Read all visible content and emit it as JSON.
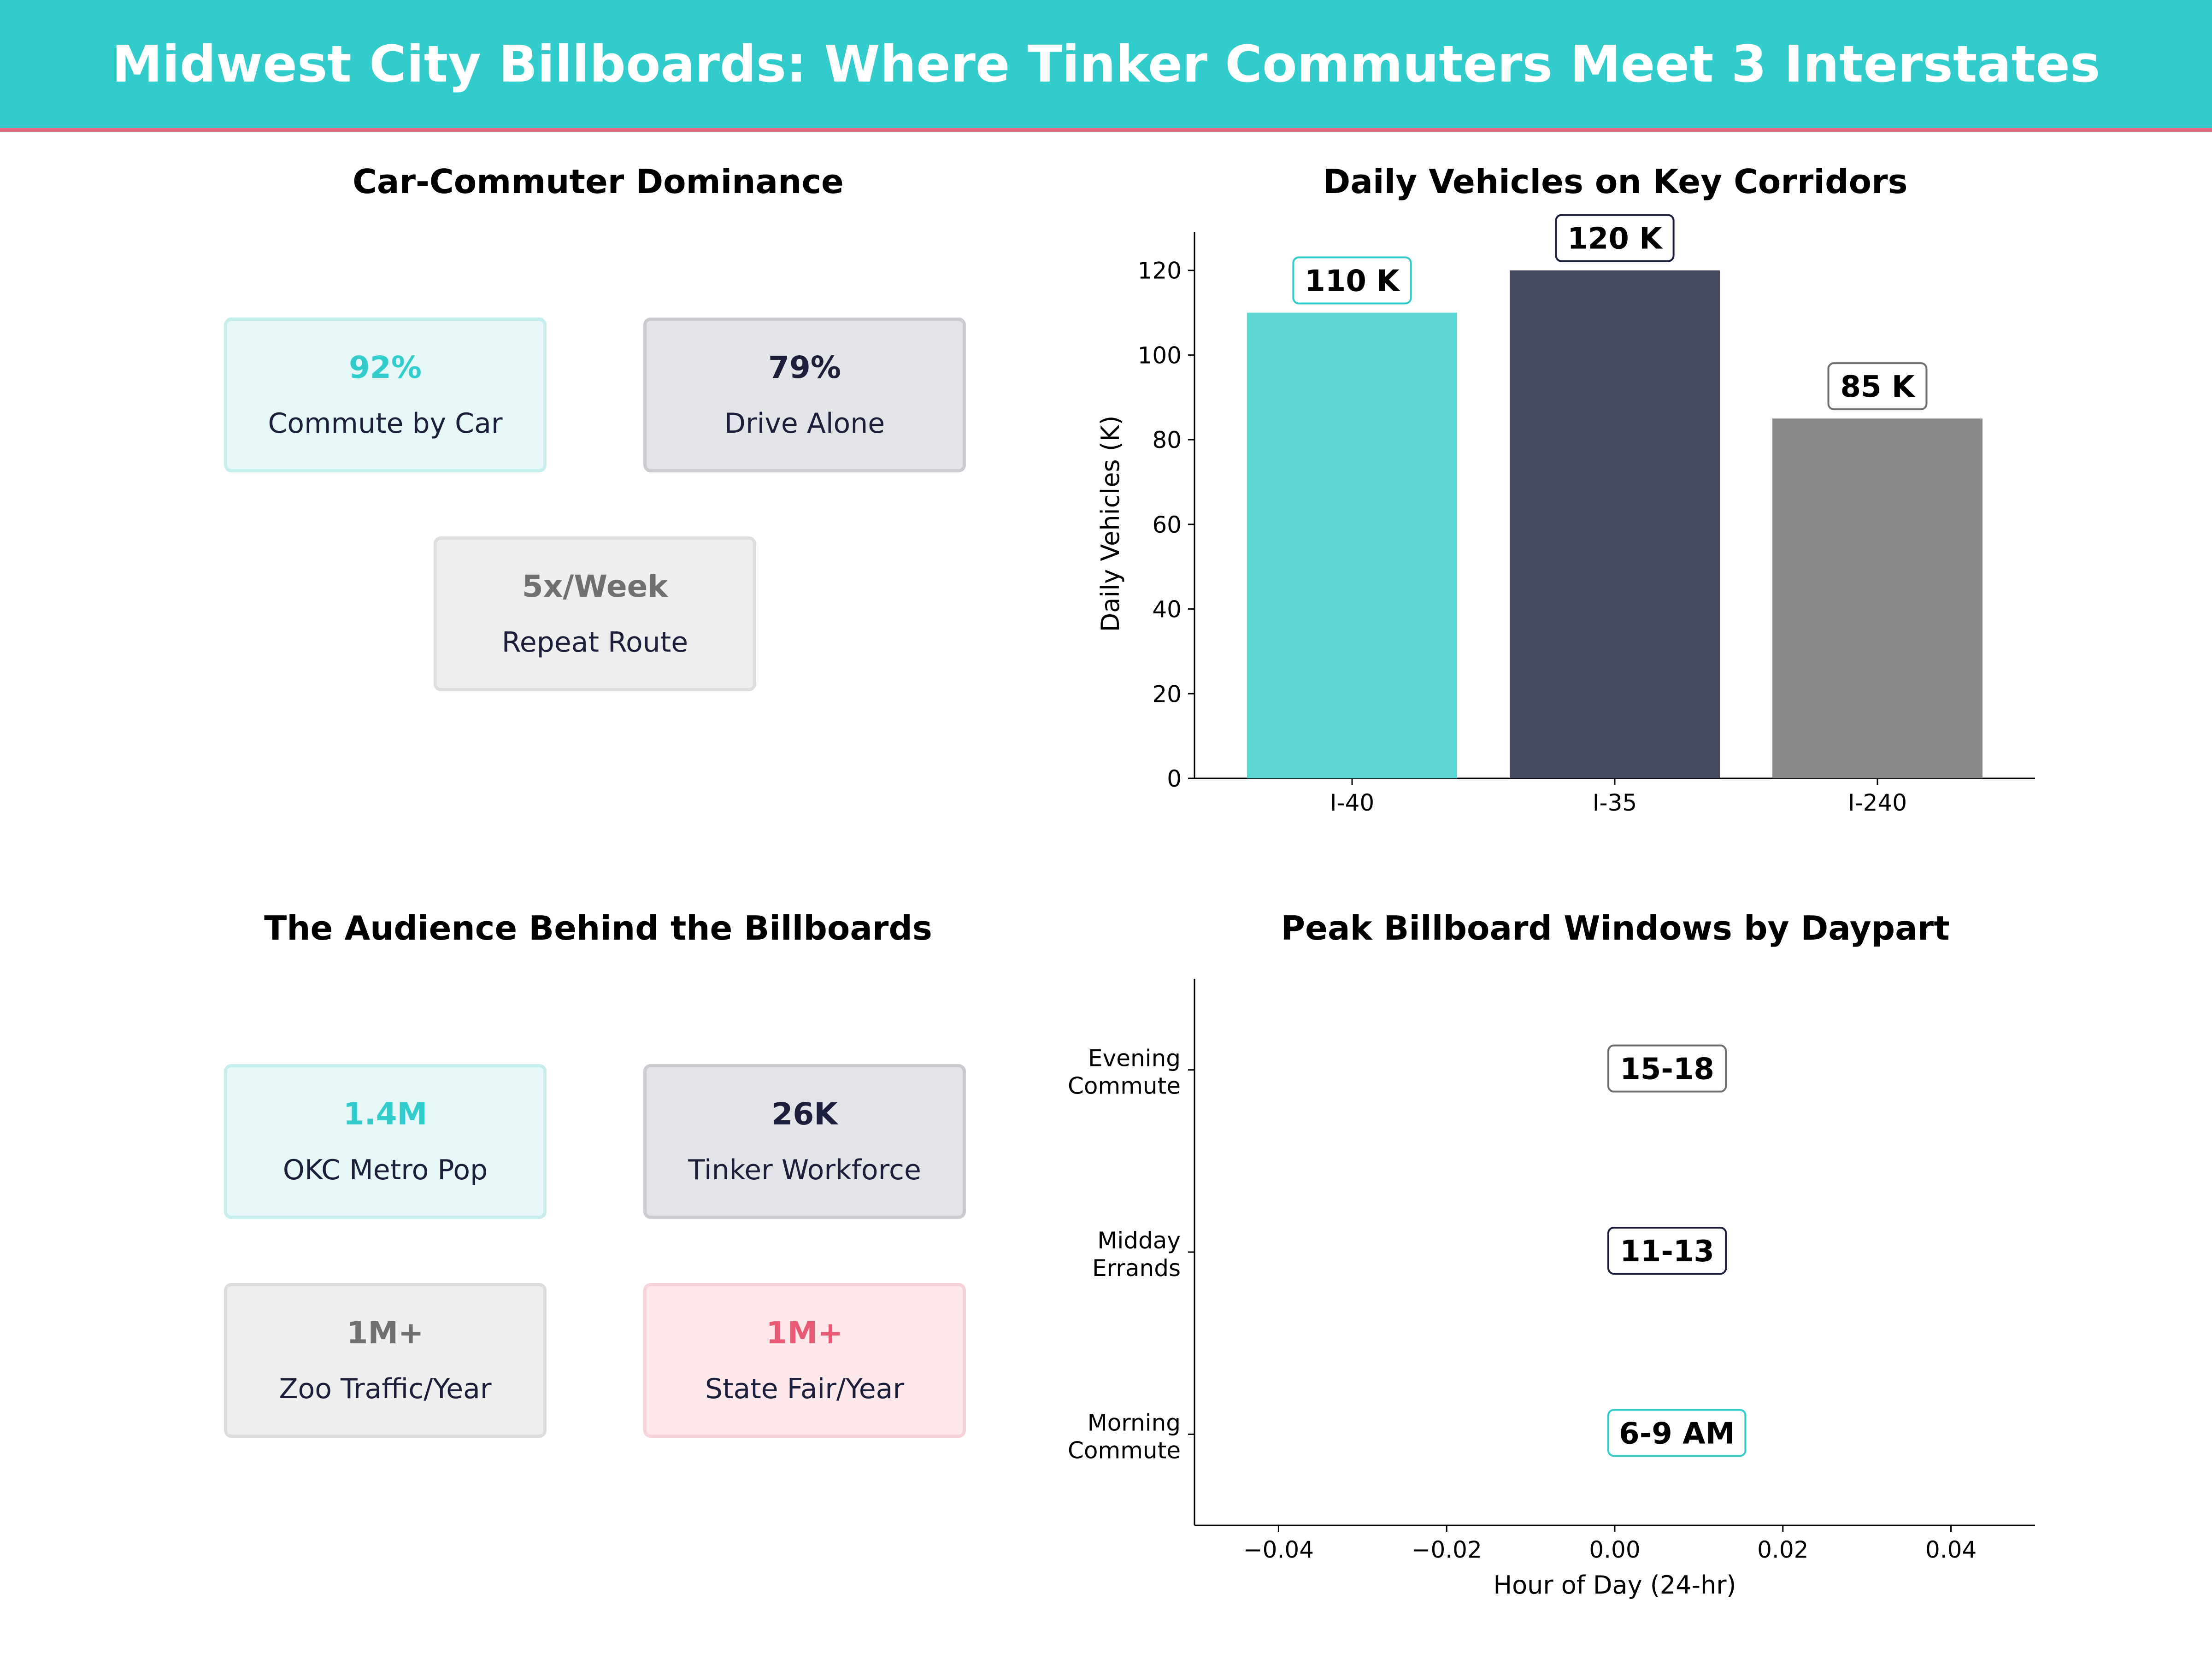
{
  "title": "Midwest City Billboards: Where Tinker Commuters Meet 3 Interstates",
  "colors": {
    "teal": "#33CCCC",
    "navy": "#1B1F3B",
    "gray": "#707070",
    "pink": "#E85A73",
    "teal_bar": "#5DD8D5",
    "navy_bar": "#454A5E",
    "gray_bar": "#8A8A8A"
  },
  "commuter_panel": {
    "title": "Car-Commuter Dominance",
    "cards": [
      {
        "value": "92%",
        "label": "Commute by Car",
        "color": "teal"
      },
      {
        "value": "79%",
        "label": "Drive Alone",
        "color": "navy"
      },
      {
        "value": "5x/Week",
        "label": "Repeat Route",
        "color": "gray"
      }
    ]
  },
  "audience_panel": {
    "title": "The Audience Behind the Billboards",
    "cards": [
      {
        "value": "1.4M",
        "label": "OKC Metro Pop",
        "color": "teal"
      },
      {
        "value": "26K",
        "label": "Tinker Workforce",
        "color": "navy"
      },
      {
        "value": "1M+",
        "label": "Zoo Traffic/Year",
        "color": "gray"
      },
      {
        "value": "1M+",
        "label": "State Fair/Year",
        "color": "pink"
      }
    ]
  },
  "chart_data": [
    {
      "type": "bar",
      "title": "Daily Vehicles on Key Corridors",
      "categories": [
        "I-40",
        "I-35",
        "I-240"
      ],
      "values": [
        110,
        120,
        85
      ],
      "data_labels": [
        "110 K",
        "120 K",
        "85 K"
      ],
      "bar_colors": [
        "teal_bar",
        "navy_bar",
        "gray_bar"
      ],
      "label_border_colors": [
        "teal",
        "navy",
        "gray"
      ],
      "ylabel": "Daily Vehicles (K)",
      "xlabel": "",
      "ylim": [
        0,
        129
      ],
      "yticks": [
        0,
        20,
        40,
        60,
        80,
        100,
        120
      ],
      "grid": false
    },
    {
      "type": "scatter",
      "title": "Peak Billboard Windows by Daypart",
      "xlabel": "Hour of Day (24-hr)",
      "xlim": [
        -0.05,
        0.05
      ],
      "xticks": [
        -0.04,
        -0.02,
        0.0,
        0.02,
        0.04
      ],
      "xtick_labels": [
        "−0.04",
        "−0.02",
        "0.00",
        "0.02",
        "0.04"
      ],
      "categories": [
        {
          "line1": "Morning",
          "line2": "Commute"
        },
        {
          "line1": "Midday",
          "line2": "Errands"
        },
        {
          "line1": "Evening",
          "line2": "Commute"
        }
      ],
      "annotations": [
        {
          "text": "6-9 AM",
          "category_index": 0,
          "x": 0.0,
          "border_color": "teal"
        },
        {
          "text": "11-13",
          "category_index": 1,
          "x": 0.0,
          "border_color": "navy"
        },
        {
          "text": "15-18",
          "category_index": 2,
          "x": 0.0,
          "border_color": "gray"
        }
      ],
      "grid": false
    }
  ]
}
